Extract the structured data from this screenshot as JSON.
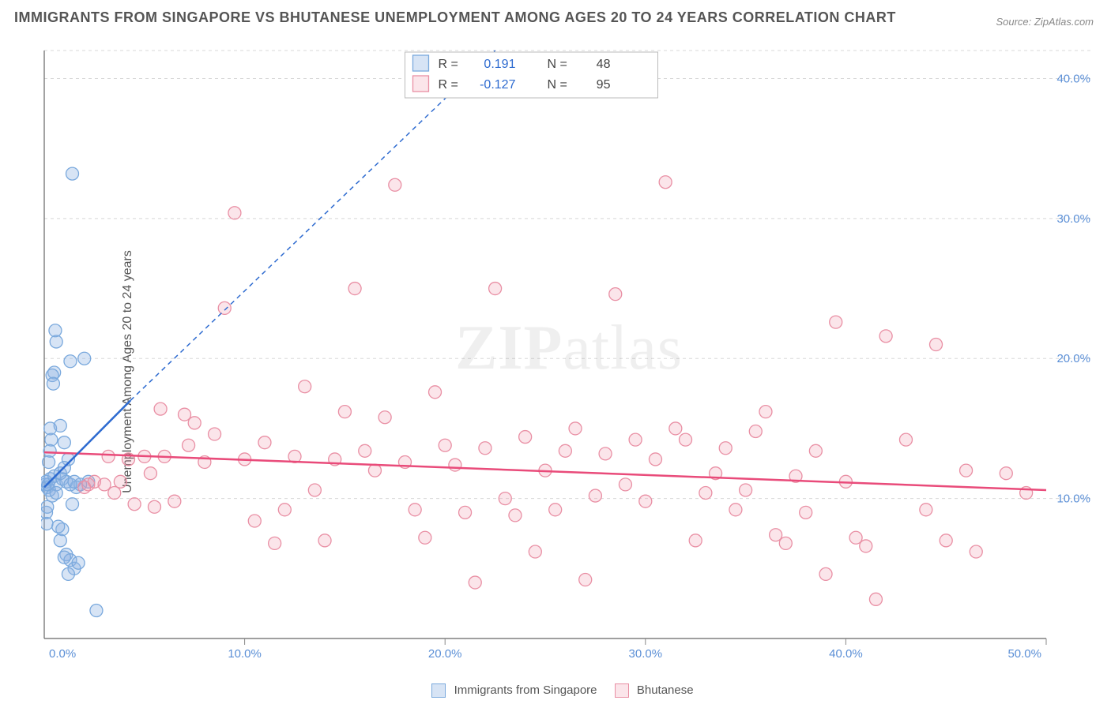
{
  "title": "IMMIGRANTS FROM SINGAPORE VS BHUTANESE UNEMPLOYMENT AMONG AGES 20 TO 24 YEARS CORRELATION CHART",
  "source": "Source: ZipAtlas.com",
  "ylabel": "Unemployment Among Ages 20 to 24 years",
  "watermark_bold": "ZIP",
  "watermark_rest": "atlas",
  "chart": {
    "type": "scatter",
    "background_color": "#ffffff",
    "grid_color": "#d8d8d8",
    "axis_color": "#666666",
    "tick_color": "#888888",
    "xlim": [
      0,
      50
    ],
    "ylim": [
      0,
      42
    ],
    "xtick_step": 10,
    "ytick_step": 10,
    "xtick_labels": [
      "0.0%",
      "10.0%",
      "20.0%",
      "30.0%",
      "40.0%",
      "50.0%"
    ],
    "ytick_labels": [
      "10.0%",
      "20.0%",
      "30.0%",
      "40.0%"
    ],
    "ytick_values": [
      10,
      20,
      30,
      40
    ],
    "axis_label_color": "#5b8fd6",
    "axis_label_fontsize": 15,
    "marker_radius": 8,
    "series": [
      {
        "name": "Immigrants from Singapore",
        "fill": "rgba(141,179,226,0.35)",
        "stroke": "#7aa9dd",
        "R": "0.191",
        "N": "48",
        "trend": {
          "x1": 0,
          "y1": 10.8,
          "x2": 4.3,
          "y2": 17.0,
          "solid_until_x": 4.3,
          "dash_x2": 22.5,
          "dash_y2": 42.0,
          "color": "#2e6bd0",
          "width": 2.5
        },
        "points": [
          [
            0.05,
            11.0
          ],
          [
            0.1,
            11.2
          ],
          [
            0.15,
            10.8
          ],
          [
            0.2,
            11.0
          ],
          [
            0.25,
            10.6
          ],
          [
            0.3,
            11.4
          ],
          [
            0.1,
            9.0
          ],
          [
            0.15,
            9.4
          ],
          [
            0.12,
            8.2
          ],
          [
            0.5,
            19.0
          ],
          [
            0.6,
            21.2
          ],
          [
            0.55,
            22.0
          ],
          [
            0.4,
            18.8
          ],
          [
            0.45,
            18.2
          ],
          [
            0.3,
            15.0
          ],
          [
            0.35,
            14.2
          ],
          [
            0.28,
            13.4
          ],
          [
            0.22,
            12.6
          ],
          [
            0.8,
            15.2
          ],
          [
            1.2,
            12.8
          ],
          [
            1.0,
            14.0
          ],
          [
            1.3,
            19.8
          ],
          [
            2.0,
            20.0
          ],
          [
            2.2,
            11.2
          ],
          [
            1.6,
            10.8
          ],
          [
            1.4,
            9.6
          ],
          [
            1.8,
            11.0
          ],
          [
            0.9,
            7.8
          ],
          [
            1.1,
            6.0
          ],
          [
            1.3,
            5.6
          ],
          [
            1.5,
            5.0
          ],
          [
            1.7,
            5.4
          ],
          [
            1.2,
            4.6
          ],
          [
            1.0,
            5.8
          ],
          [
            0.8,
            7.0
          ],
          [
            0.7,
            8.0
          ],
          [
            2.6,
            2.0
          ],
          [
            0.5,
            11.6
          ],
          [
            0.6,
            11.0
          ],
          [
            0.9,
            11.4
          ],
          [
            1.1,
            11.2
          ],
          [
            1.3,
            11.0
          ],
          [
            1.5,
            11.2
          ],
          [
            1.4,
            33.2
          ],
          [
            0.4,
            10.2
          ],
          [
            0.6,
            10.4
          ],
          [
            0.8,
            11.8
          ],
          [
            1.0,
            12.2
          ]
        ]
      },
      {
        "name": "Bhutanese",
        "fill": "rgba(240,150,170,0.25)",
        "stroke": "#e98fa4",
        "R": "-0.127",
        "N": "95",
        "trend": {
          "x1": 0,
          "y1": 13.3,
          "x2": 50,
          "y2": 10.6,
          "color": "#e94b7a",
          "width": 2.5
        },
        "points": [
          [
            2.0,
            10.8
          ],
          [
            2.2,
            11.0
          ],
          [
            2.5,
            11.2
          ],
          [
            3.0,
            11.0
          ],
          [
            3.2,
            13.0
          ],
          [
            3.5,
            10.4
          ],
          [
            3.8,
            11.2
          ],
          [
            4.2,
            12.8
          ],
          [
            4.5,
            9.6
          ],
          [
            5.0,
            13.0
          ],
          [
            5.3,
            11.8
          ],
          [
            5.5,
            9.4
          ],
          [
            5.8,
            16.4
          ],
          [
            6.0,
            13.0
          ],
          [
            6.5,
            9.8
          ],
          [
            7.0,
            16.0
          ],
          [
            7.2,
            13.8
          ],
          [
            7.5,
            15.4
          ],
          [
            8.0,
            12.6
          ],
          [
            8.5,
            14.6
          ],
          [
            9.0,
            23.6
          ],
          [
            9.5,
            30.4
          ],
          [
            10.0,
            12.8
          ],
          [
            10.5,
            8.4
          ],
          [
            11.0,
            14.0
          ],
          [
            11.5,
            6.8
          ],
          [
            12.0,
            9.2
          ],
          [
            12.5,
            13.0
          ],
          [
            13.0,
            18.0
          ],
          [
            13.5,
            10.6
          ],
          [
            14.0,
            7.0
          ],
          [
            14.5,
            12.8
          ],
          [
            15.0,
            16.2
          ],
          [
            15.5,
            25.0
          ],
          [
            16.0,
            13.4
          ],
          [
            16.5,
            12.0
          ],
          [
            17.0,
            15.8
          ],
          [
            17.5,
            32.4
          ],
          [
            18.0,
            12.6
          ],
          [
            18.5,
            9.2
          ],
          [
            19.0,
            7.2
          ],
          [
            19.5,
            17.6
          ],
          [
            20.0,
            13.8
          ],
          [
            20.5,
            12.4
          ],
          [
            21.0,
            9.0
          ],
          [
            21.5,
            4.0
          ],
          [
            22.0,
            13.6
          ],
          [
            22.5,
            25.0
          ],
          [
            23.0,
            10.0
          ],
          [
            23.5,
            8.8
          ],
          [
            24.0,
            14.4
          ],
          [
            24.5,
            6.2
          ],
          [
            25.0,
            12.0
          ],
          [
            25.5,
            9.2
          ],
          [
            26.0,
            13.4
          ],
          [
            26.5,
            15.0
          ],
          [
            27.0,
            4.2
          ],
          [
            27.5,
            10.2
          ],
          [
            28.0,
            13.2
          ],
          [
            28.5,
            24.6
          ],
          [
            29.0,
            11.0
          ],
          [
            29.5,
            14.2
          ],
          [
            30.0,
            9.8
          ],
          [
            30.5,
            12.8
          ],
          [
            31.0,
            32.6
          ],
          [
            31.5,
            15.0
          ],
          [
            32.0,
            14.2
          ],
          [
            32.5,
            7.0
          ],
          [
            33.0,
            10.4
          ],
          [
            33.5,
            11.8
          ],
          [
            34.0,
            13.6
          ],
          [
            34.5,
            9.2
          ],
          [
            35.0,
            10.6
          ],
          [
            35.5,
            14.8
          ],
          [
            36.0,
            16.2
          ],
          [
            36.5,
            7.4
          ],
          [
            37.0,
            6.8
          ],
          [
            37.5,
            11.6
          ],
          [
            38.0,
            9.0
          ],
          [
            38.5,
            13.4
          ],
          [
            39.0,
            4.6
          ],
          [
            39.5,
            22.6
          ],
          [
            40.0,
            11.2
          ],
          [
            40.5,
            7.2
          ],
          [
            41.0,
            6.6
          ],
          [
            41.5,
            2.8
          ],
          [
            42.0,
            21.6
          ],
          [
            43.0,
            14.2
          ],
          [
            44.0,
            9.2
          ],
          [
            44.5,
            21.0
          ],
          [
            45.0,
            7.0
          ],
          [
            46.0,
            12.0
          ],
          [
            46.5,
            6.2
          ],
          [
            48.0,
            11.8
          ],
          [
            49.0,
            10.4
          ]
        ]
      }
    ],
    "stat_box": {
      "bg": "#ffffff",
      "border": "#bbbbbb",
      "text_color": "#444444",
      "value_color": "#2e6bd0",
      "fontsize": 16
    },
    "legend": {
      "fontsize": 15,
      "text_color": "#555555"
    }
  }
}
